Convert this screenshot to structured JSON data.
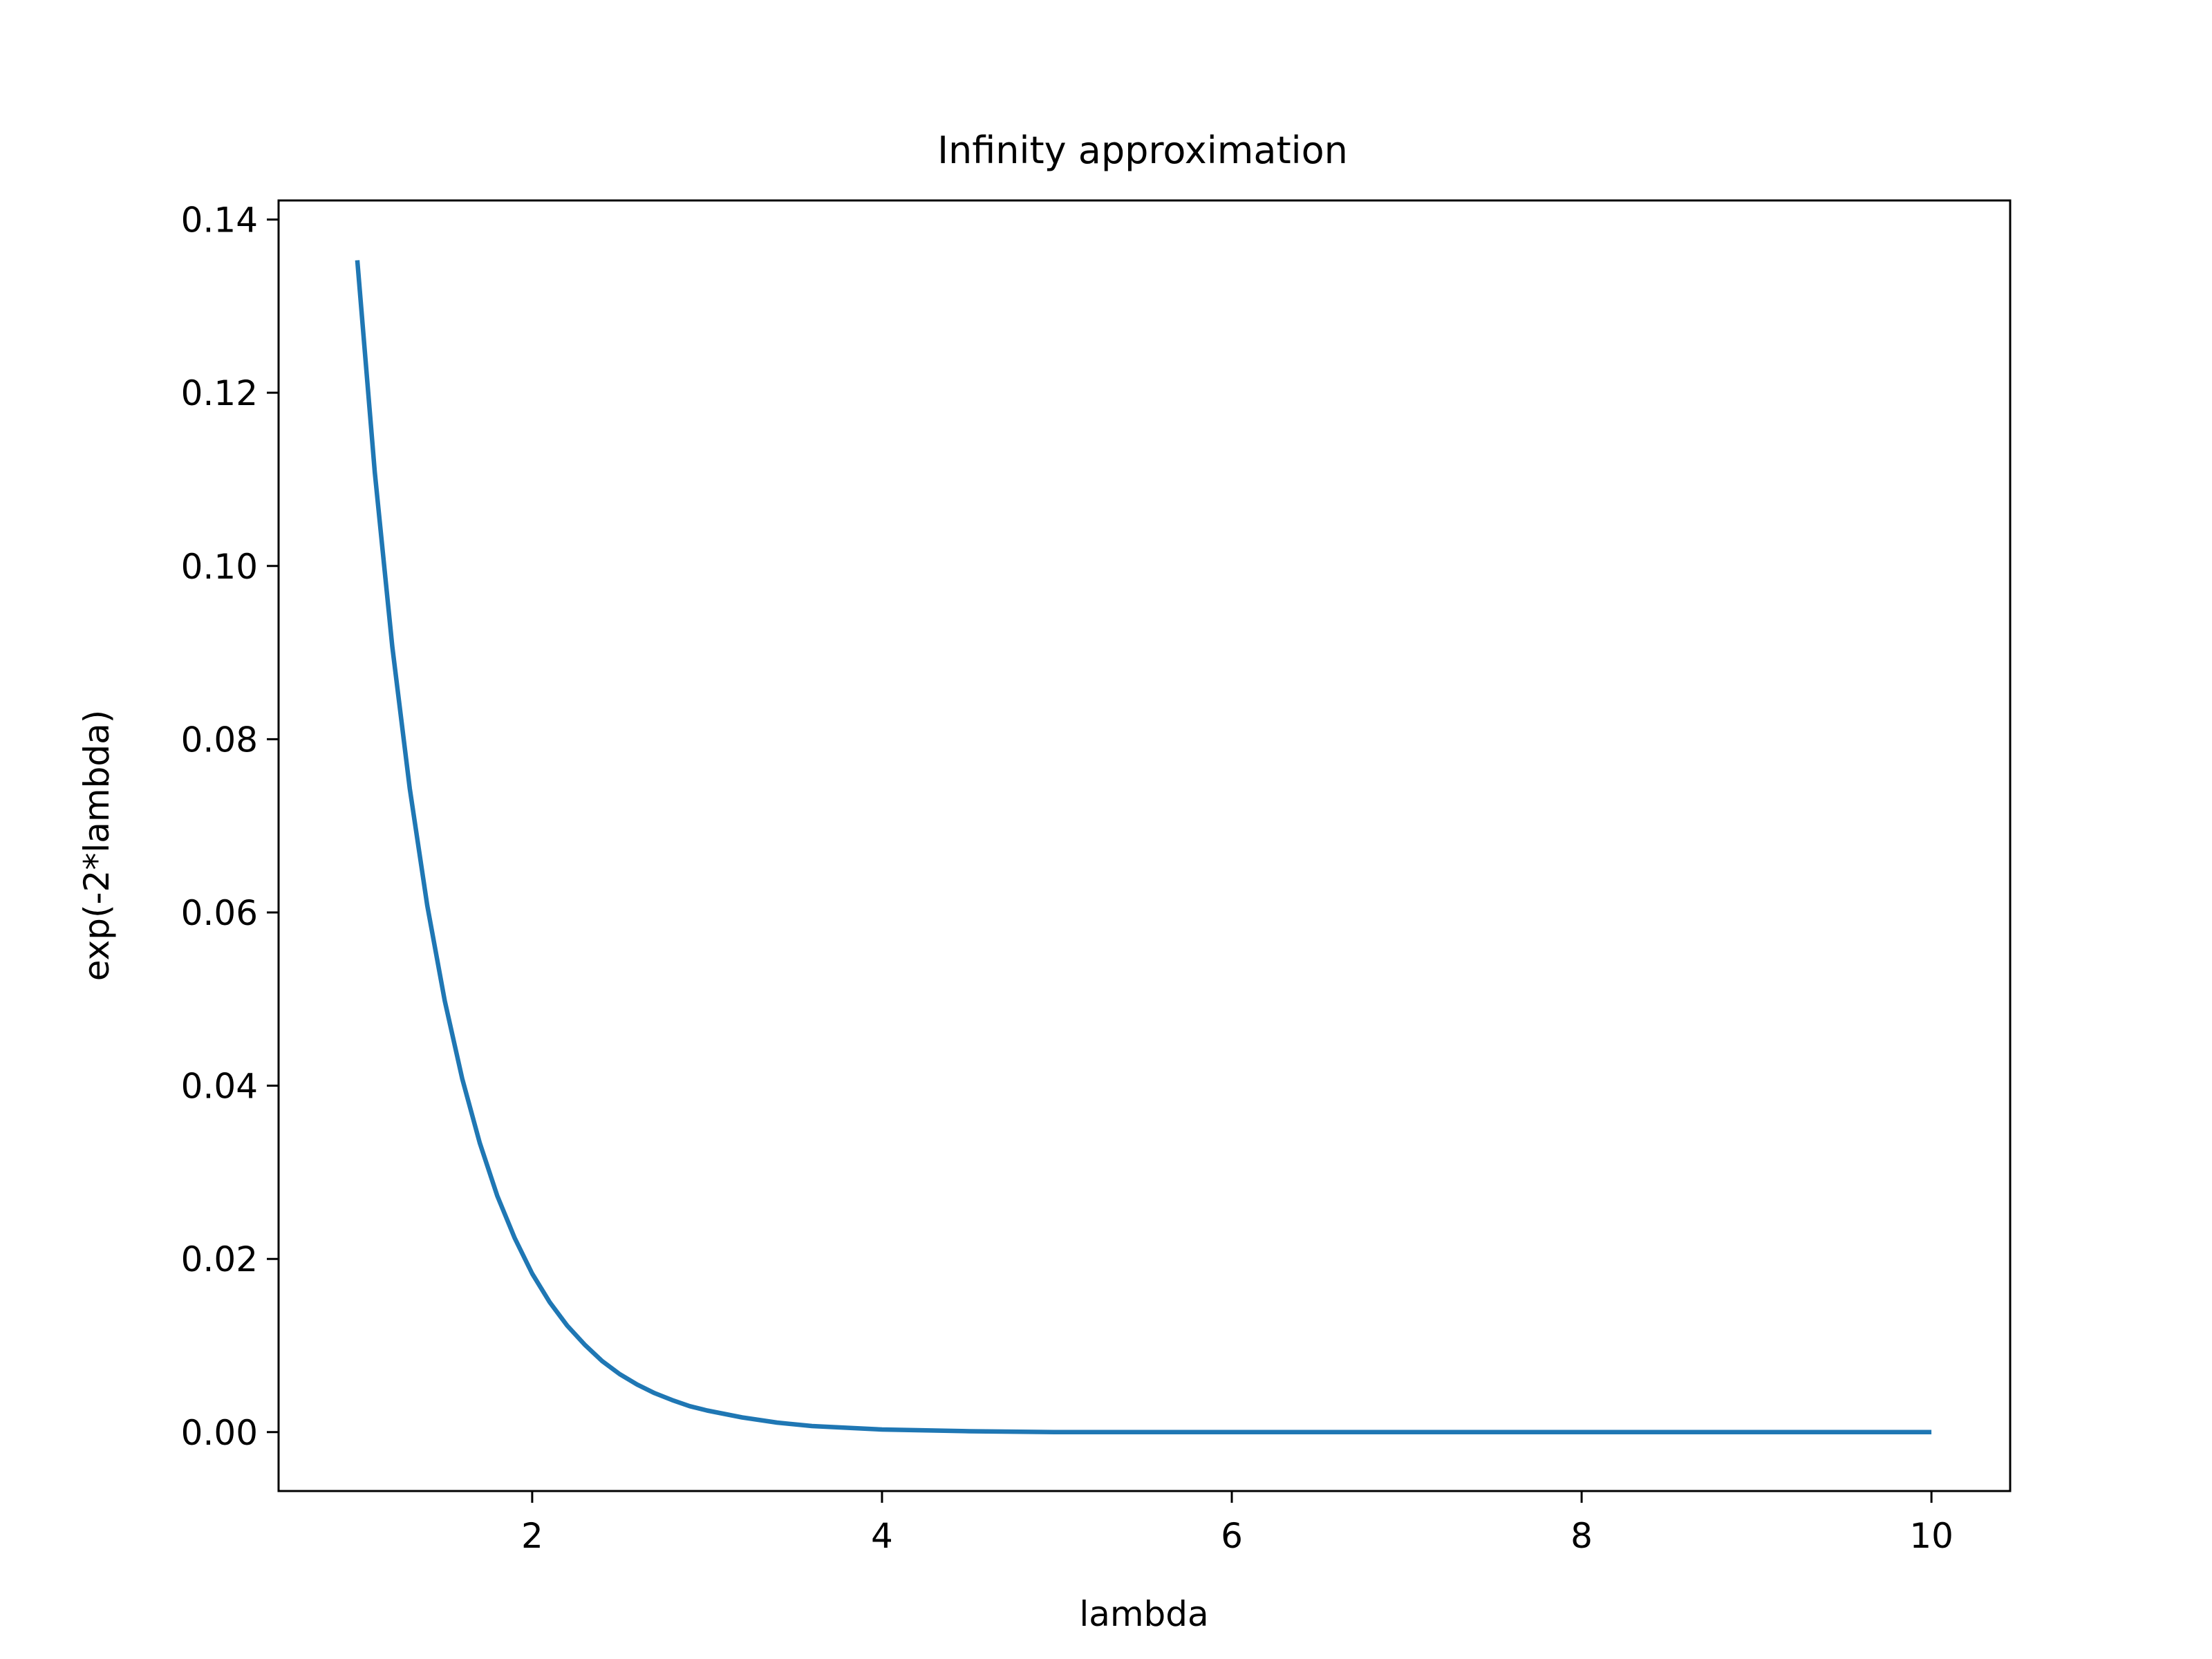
{
  "chart_data": {
    "type": "line",
    "title": "Infinity approximation",
    "xlabel": "lambda",
    "ylabel": "exp(-2*lambda)",
    "xlim": [
      0.55,
      10.45
    ],
    "ylim": [
      -0.0068,
      0.1422
    ],
    "xticks": [
      2,
      4,
      6,
      8,
      10
    ],
    "xtick_labels": [
      "2",
      "4",
      "6",
      "8",
      "10"
    ],
    "yticks": [
      0.0,
      0.02,
      0.04,
      0.06,
      0.08,
      0.1,
      0.12,
      0.14
    ],
    "ytick_labels": [
      "0.00",
      "0.02",
      "0.04",
      "0.06",
      "0.08",
      "0.10",
      "0.12",
      "0.14"
    ],
    "grid": false,
    "series": [
      {
        "color": "#1f77b4",
        "x": [
          1.0,
          1.1,
          1.2,
          1.3,
          1.4,
          1.5,
          1.6,
          1.7,
          1.8,
          1.9,
          2.0,
          2.1,
          2.2,
          2.3,
          2.4,
          2.5,
          2.6,
          2.7,
          2.8,
          2.9,
          3.0,
          3.2,
          3.4,
          3.6,
          3.8,
          4.0,
          4.5,
          5.0,
          5.5,
          6.0,
          7.0,
          8.0,
          9.0,
          10.0
        ],
        "y": [
          0.1353,
          0.1108,
          0.0907,
          0.0743,
          0.0608,
          0.0498,
          0.0408,
          0.0334,
          0.0273,
          0.0224,
          0.0183,
          0.015,
          0.0123,
          0.0101,
          0.0082,
          0.0067,
          0.0055,
          0.0045,
          0.0037,
          0.003,
          0.0025,
          0.0017,
          0.0011,
          0.0007,
          0.0005,
          0.0003,
          0.0001,
          0.0,
          0.0,
          0.0,
          0.0,
          0.0,
          0.0,
          0.0
        ]
      }
    ]
  }
}
